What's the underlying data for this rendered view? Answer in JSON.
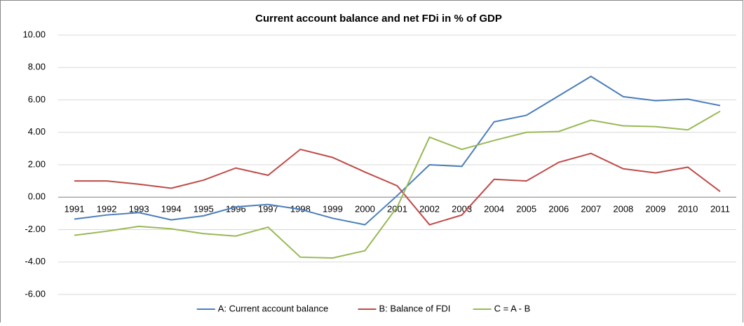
{
  "chart_data": {
    "type": "line",
    "title": "Current account balance and net FDi in % of GDP",
    "categories": [
      "1991",
      "1992",
      "1993",
      "1994",
      "1995",
      "1996",
      "1997",
      "1998",
      "1999",
      "2000",
      "2001",
      "2002",
      "2003",
      "2004",
      "2005",
      "2006",
      "2007",
      "2008",
      "2009",
      "2010",
      "2011"
    ],
    "series": [
      {
        "name": "A: Current account balance",
        "color": "#4a7ebb",
        "values": [
          -1.35,
          -1.1,
          -0.95,
          -1.4,
          -1.15,
          -0.6,
          -0.45,
          -0.75,
          -1.3,
          -1.7,
          0.1,
          2.0,
          1.9,
          4.65,
          5.05,
          6.25,
          7.45,
          6.2,
          5.95,
          6.05,
          5.65
        ]
      },
      {
        "name": "B: Balance of FDI",
        "color": "#be4b48",
        "values": [
          1.0,
          1.0,
          0.8,
          0.55,
          1.05,
          1.8,
          1.35,
          2.95,
          2.45,
          1.55,
          0.7,
          -1.7,
          -1.1,
          1.1,
          1.0,
          2.15,
          2.7,
          1.75,
          1.5,
          1.85,
          0.35
        ]
      },
      {
        "name": "C = A - B",
        "color": "#98b954",
        "values": [
          -2.35,
          -2.1,
          -1.8,
          -1.95,
          -2.25,
          -2.4,
          -1.85,
          -3.7,
          -3.75,
          -3.3,
          -0.6,
          3.7,
          2.95,
          3.5,
          4.0,
          4.05,
          4.75,
          4.4,
          4.35,
          4.15,
          5.3
        ]
      }
    ],
    "ylim": [
      -6,
      10
    ],
    "yticks": [
      {
        "value": -6,
        "label": "-6.00"
      },
      {
        "value": -4,
        "label": "-4.00"
      },
      {
        "value": -2,
        "label": "-2.00"
      },
      {
        "value": 0,
        "label": "0.00"
      },
      {
        "value": 2,
        "label": "2.00"
      },
      {
        "value": 4,
        "label": "4.00"
      },
      {
        "value": 6,
        "label": "6.00"
      },
      {
        "value": 8,
        "label": "8.00"
      },
      {
        "value": 10,
        "label": "10.00"
      }
    ],
    "grid": true,
    "legend": "bottom"
  }
}
